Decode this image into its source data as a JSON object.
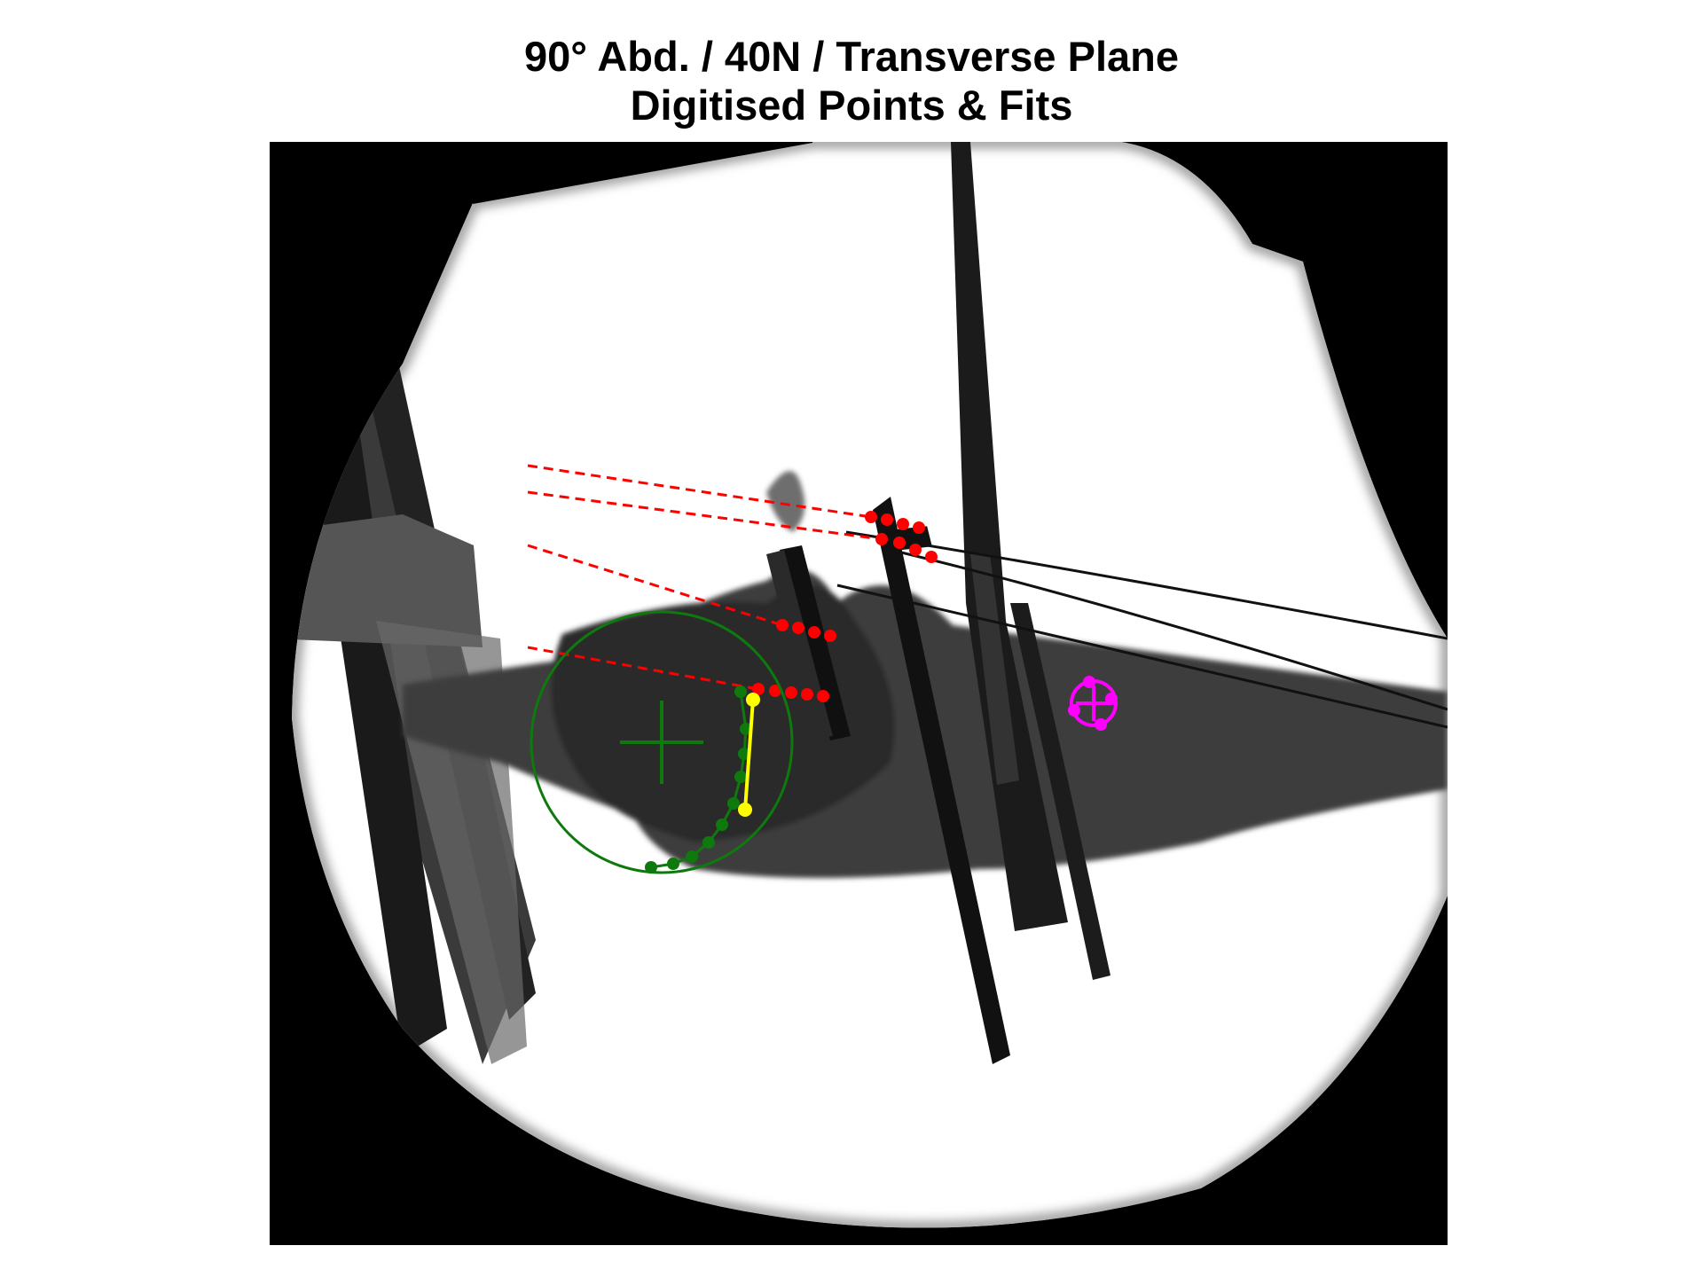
{
  "figure": {
    "title_line1": "90° Abd. / 40N / Transverse Plane",
    "title_line2": "Digitised Points & Fits"
  },
  "colors": {
    "background": "#ffffff",
    "xray_frame": "#000000",
    "circle_fit": "#0e7a0e",
    "humeral_head_points": "#0e7a0e",
    "muscle_lines": "#ff0000",
    "glenoid_axis": "#ffff00",
    "reference_marker": "#ff00ff"
  },
  "icons": [
    "crosshair-icon"
  ]
}
